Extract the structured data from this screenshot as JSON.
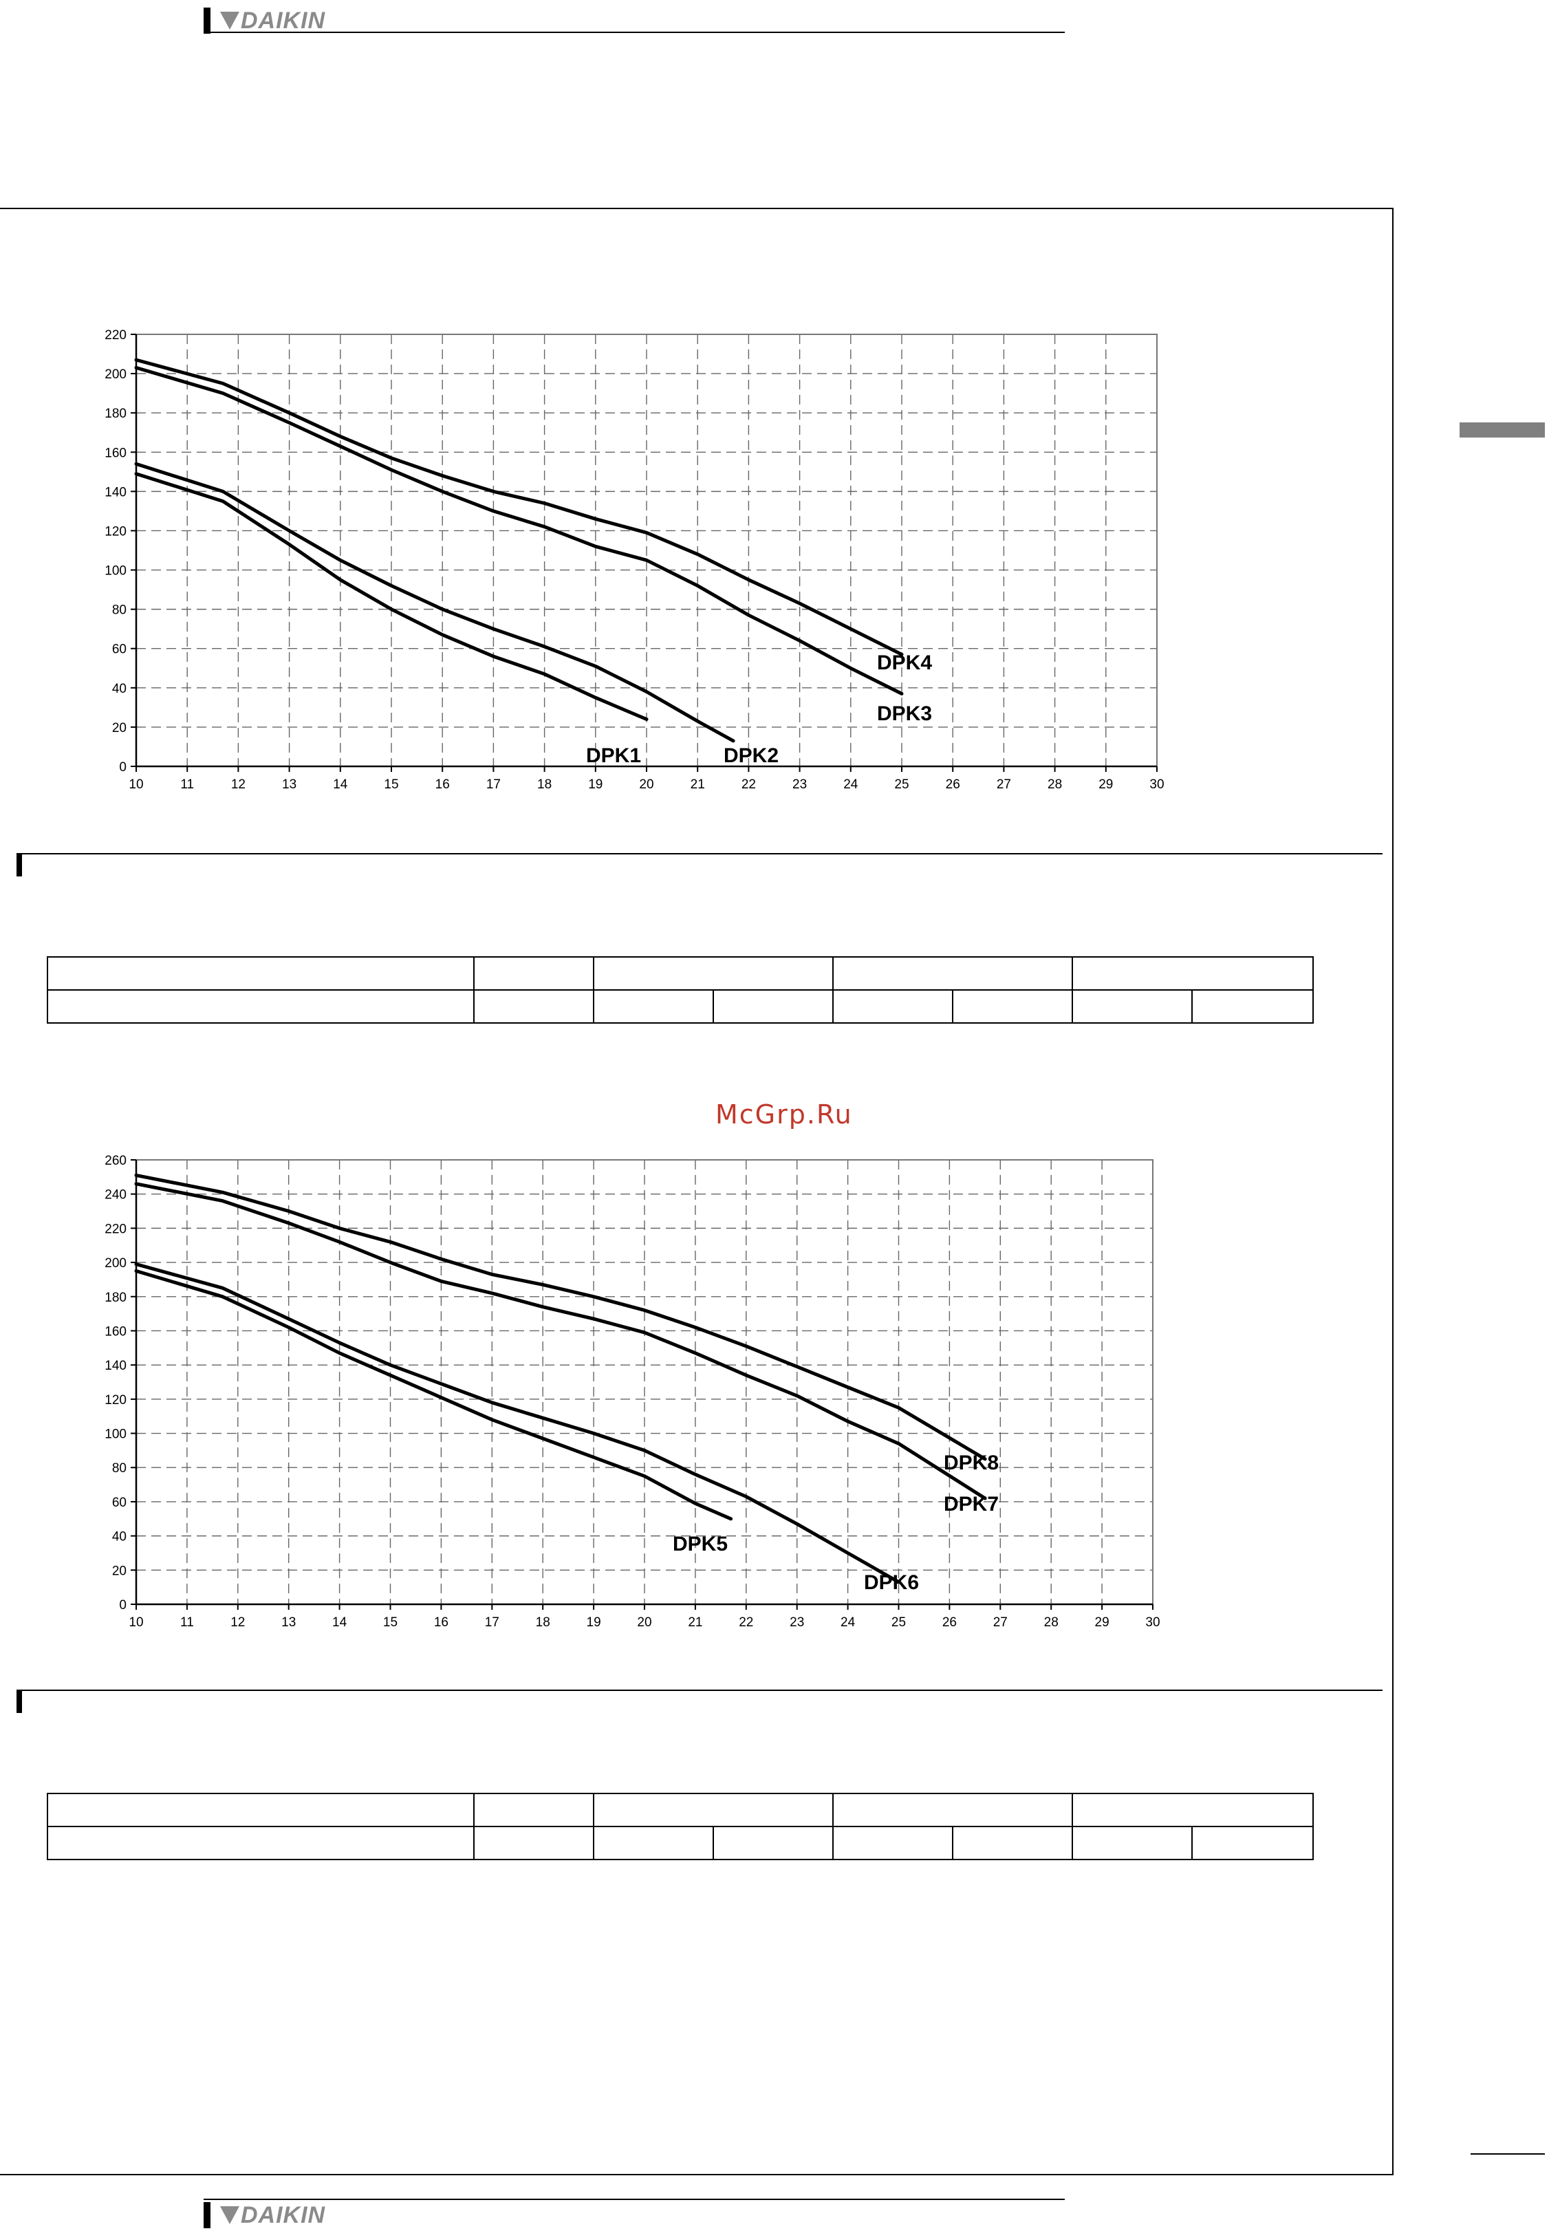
{
  "header": {
    "brand": "DAIKIN"
  },
  "footer": {
    "brand": "DAIKIN"
  },
  "watermark": "McGrp.Ru",
  "chart_data": [
    {
      "type": "line",
      "xlim": [
        10,
        30
      ],
      "ylim": [
        0,
        220
      ],
      "xticks": [
        10,
        11,
        12,
        13,
        14,
        15,
        16,
        17,
        18,
        19,
        20,
        21,
        22,
        23,
        24,
        25,
        26,
        27,
        28,
        29,
        30
      ],
      "yticks": [
        0,
        20,
        40,
        60,
        80,
        100,
        120,
        140,
        160,
        180,
        200,
        220
      ],
      "grid": true,
      "series": [
        {
          "name": "DPK1",
          "x": [
            10,
            11.7,
            13,
            14,
            15,
            16,
            17,
            18,
            19,
            20
          ],
          "y": [
            149,
            135,
            113,
            95,
            80,
            67,
            56,
            47,
            35,
            24
          ]
        },
        {
          "name": "DPK2",
          "x": [
            10,
            11.7,
            13,
            14,
            15,
            16,
            17,
            18,
            19,
            20,
            21,
            21.7
          ],
          "y": [
            154,
            140,
            120,
            105,
            92,
            80,
            70,
            61,
            51,
            38,
            23,
            13
          ]
        },
        {
          "name": "DPK3",
          "x": [
            10,
            11.7,
            13,
            14,
            15,
            16,
            17,
            18,
            19,
            20,
            21,
            22,
            23,
            24,
            25
          ],
          "y": [
            203,
            190,
            175,
            163,
            151,
            140,
            130,
            122,
            112,
            105,
            92,
            77,
            64,
            50,
            37
          ]
        },
        {
          "name": "DPK4",
          "x": [
            10,
            11.7,
            13,
            14,
            15,
            16,
            17,
            18,
            19,
            20,
            21,
            22,
            23,
            24,
            25
          ],
          "y": [
            207,
            195,
            180,
            168,
            157,
            148,
            140,
            134,
            126,
            119,
            108,
            95,
            83,
            70,
            57
          ]
        }
      ],
      "annotations": [
        "DPK4",
        "DPK3",
        "DPK1",
        "DPK2"
      ]
    },
    {
      "type": "line",
      "xlim": [
        10,
        30
      ],
      "ylim": [
        0,
        260
      ],
      "xticks": [
        10,
        11,
        12,
        13,
        14,
        15,
        16,
        17,
        18,
        19,
        20,
        21,
        22,
        23,
        24,
        25,
        26,
        27,
        28,
        29,
        30
      ],
      "yticks": [
        0,
        20,
        40,
        60,
        80,
        100,
        120,
        140,
        160,
        180,
        200,
        220,
        240,
        260
      ],
      "grid": true,
      "series": [
        {
          "name": "DPK5",
          "x": [
            10,
            11.7,
            13,
            14,
            15,
            16,
            17,
            18,
            19,
            20,
            21,
            21.7
          ],
          "y": [
            195,
            180,
            162,
            147,
            134,
            121,
            108,
            97,
            86,
            75,
            59,
            50
          ]
        },
        {
          "name": "DPK6",
          "x": [
            10,
            11.7,
            13,
            14,
            15,
            16,
            17,
            18,
            19,
            20,
            21,
            22,
            23,
            24,
            25
          ],
          "y": [
            199,
            185,
            167,
            153,
            140,
            129,
            118,
            109,
            100,
            90,
            76,
            63,
            47,
            30,
            13
          ]
        },
        {
          "name": "DPK7",
          "x": [
            10,
            11.7,
            13,
            14,
            15,
            16,
            17,
            18,
            19,
            20,
            21,
            22,
            23,
            24,
            25,
            26.7
          ],
          "y": [
            246,
            236,
            223,
            212,
            200,
            189,
            182,
            174,
            167,
            159,
            147,
            134,
            122,
            107,
            94,
            62
          ]
        },
        {
          "name": "DPK8",
          "x": [
            10,
            11.7,
            13,
            14,
            15,
            16,
            17,
            18,
            19,
            20,
            21,
            22,
            23,
            24,
            25,
            26.7
          ],
          "y": [
            251,
            241,
            230,
            220,
            212,
            202,
            193,
            187,
            180,
            172,
            162,
            151,
            139,
            127,
            115,
            85
          ]
        }
      ],
      "annotations": [
        "DPK8",
        "DPK7",
        "DPK5",
        "DPK6"
      ]
    }
  ]
}
